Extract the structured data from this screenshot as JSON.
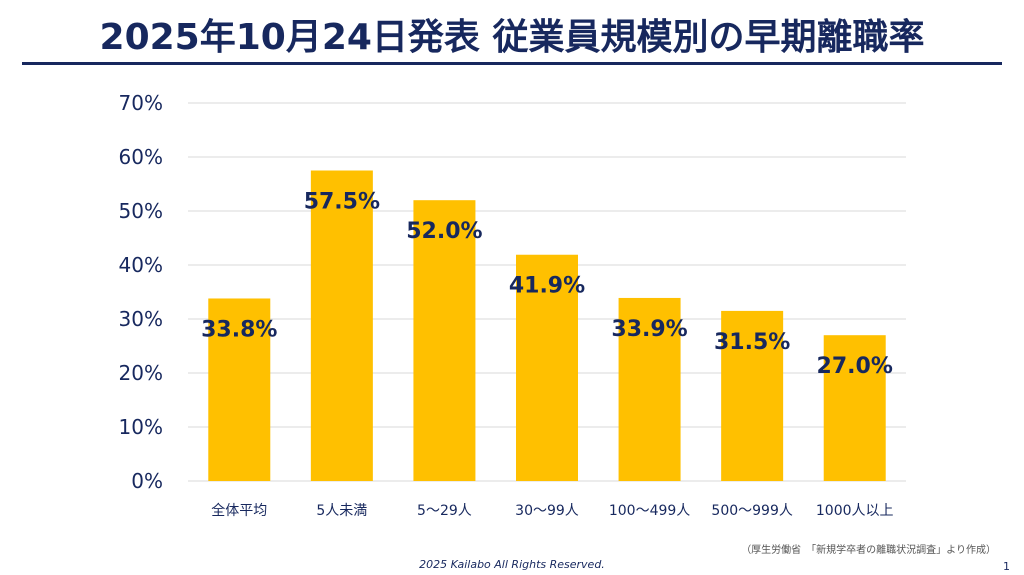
{
  "title": "2025年10月24日発表 従業員規模別の早期離職率",
  "chart_data": {
    "type": "bar",
    "categories": [
      "全体平均",
      "5人未満",
      "5～29人",
      "30～99人",
      "100～499人",
      "500～999人",
      "1000人以上"
    ],
    "values": [
      33.8,
      57.5,
      52.0,
      41.9,
      33.9,
      31.5,
      27.0
    ],
    "data_labels": [
      "33.8%",
      "57.5%",
      "52.0%",
      "41.9%",
      "33.9%",
      "31.5%",
      "27.0%"
    ],
    "ylim": [
      0,
      70
    ],
    "yticks": [
      "0%",
      "10%",
      "20%",
      "30%",
      "40%",
      "50%",
      "60%",
      "70%"
    ],
    "grid": true,
    "xlabel": "",
    "ylabel": ""
  },
  "colors": {
    "bar": "#ffc000",
    "label": "#17285e",
    "grid": "#d9d9d9",
    "axis_text": "#17285e"
  },
  "source": "（厚生労働省　「新規学卒者の離職状況調査」より作成）",
  "footer": "2025  Kailabo All Rights Reserved.",
  "page_number": "1"
}
